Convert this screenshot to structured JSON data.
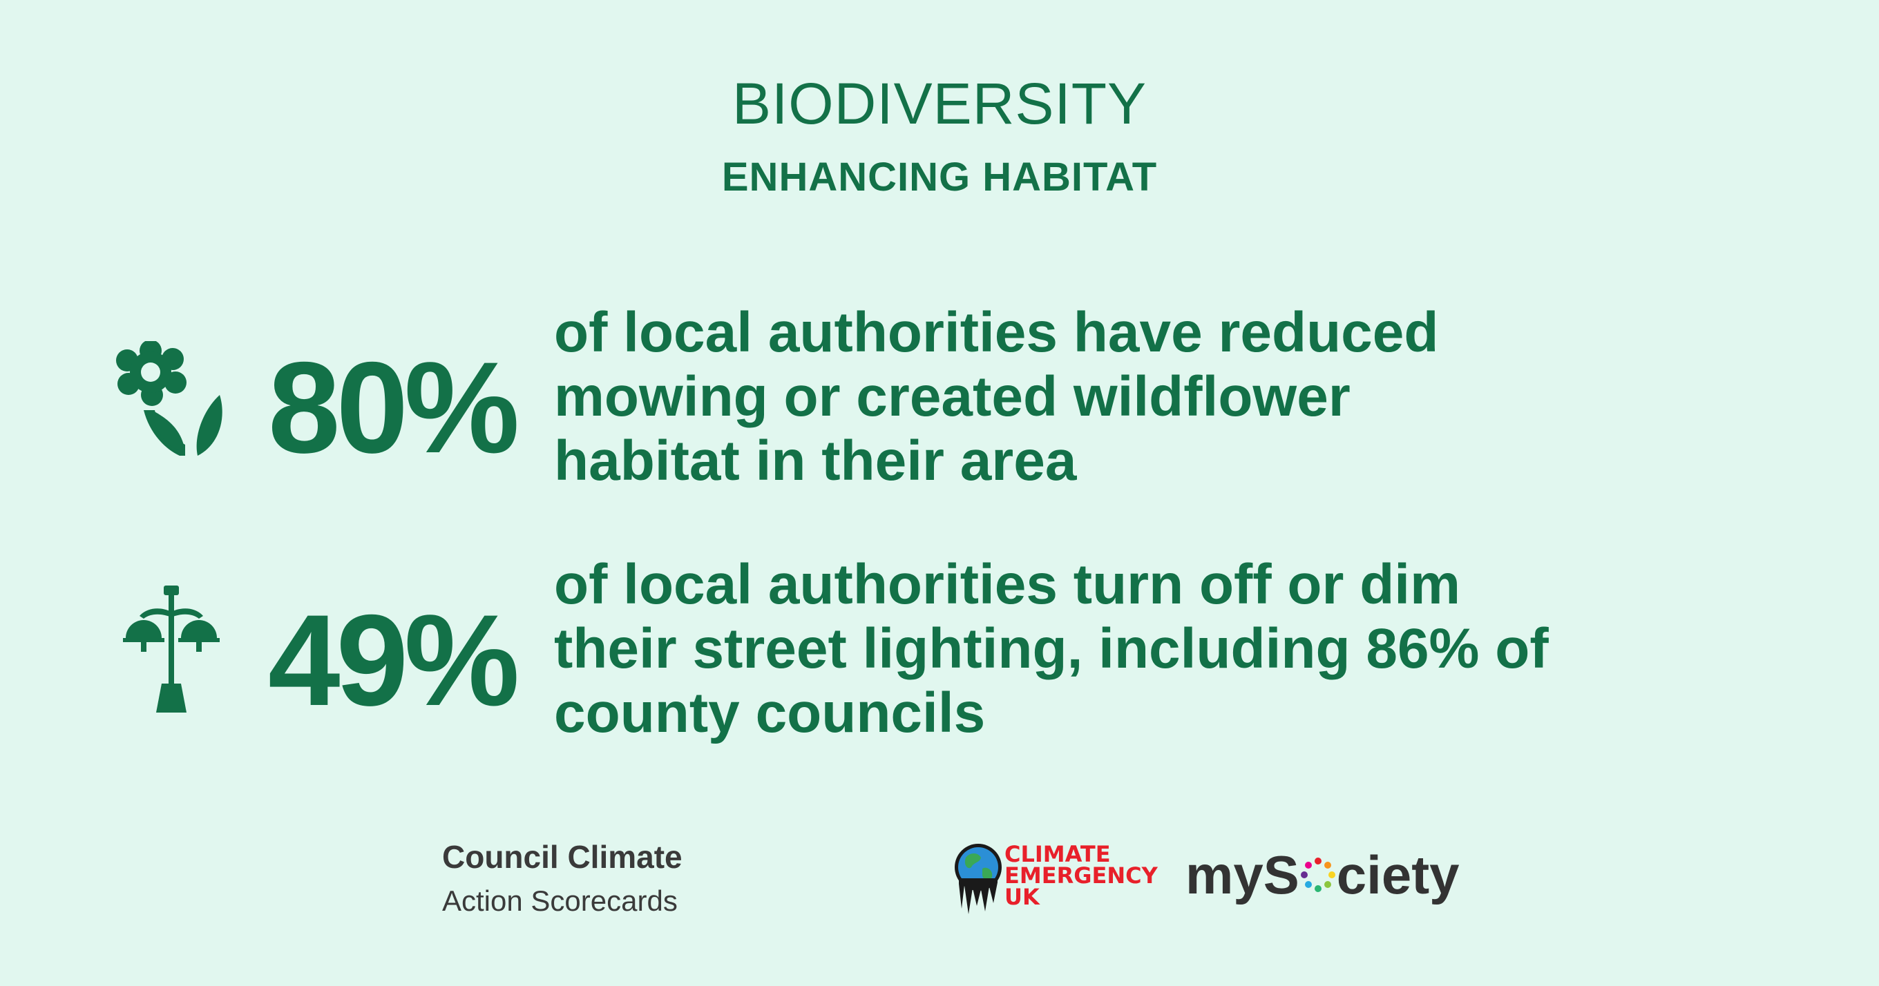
{
  "header": {
    "title": "BIODIVERSITY",
    "subtitle": "ENHANCING HABITAT"
  },
  "stats": [
    {
      "icon": "flower-icon",
      "value": "80%",
      "lines": [
        "of local authorities have reduced",
        "mowing or created wildflower",
        "habitat in their area"
      ]
    },
    {
      "icon": "street-lamp-icon",
      "value": "49%",
      "lines": [
        "of local authorities turn off or dim",
        "their street lighting, including 86% of",
        "county councils"
      ]
    }
  ],
  "footer": {
    "brand_line1": "Council Climate",
    "brand_line2": "Action Scorecards",
    "ceuk_lines": [
      "CLIMATE",
      "EMERGENCY",
      "UK"
    ],
    "mysociety_before": "myS",
    "mysociety_after": "ciety"
  },
  "colors": {
    "background": "#e1f7ef",
    "primary_green": "#137148",
    "ceuk_red": "#e8202a",
    "text_dark": "#333333"
  }
}
